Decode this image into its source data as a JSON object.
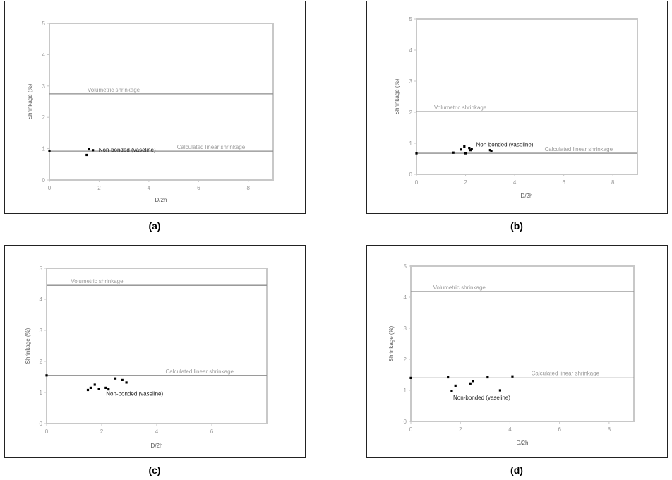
{
  "captions": [
    "(a)",
    "(b)",
    "(c)",
    "(d)"
  ],
  "colors": {
    "frame": "#222222",
    "plot_border": "#c8c8c8",
    "ref_line": "#8c8c8c",
    "points": "#000000",
    "tick_text": "#9a9a9a"
  },
  "chart_data": [
    {
      "type": "scatter",
      "xlabel": "D/2h",
      "ylabel": "Shrinkage (%)",
      "xlim": [
        0,
        9
      ],
      "ylim": [
        0,
        5
      ],
      "xticks": [
        "0",
        "2",
        "4",
        "6",
        "8"
      ],
      "yticks": [
        "0",
        "1",
        "2",
        "3",
        "4",
        "5"
      ],
      "grid": false,
      "ref_lines": [
        {
          "name": "Volumetric shrinkage",
          "y": 2.75
        },
        {
          "name": "Calculated linear shrinkage",
          "y": 0.92
        }
      ],
      "series": [
        {
          "name": "Non-bonded (vaseline)",
          "x": [
            0,
            1.5,
            1.6,
            1.75
          ],
          "y": [
            0.92,
            0.8,
            0.98,
            0.95
          ]
        }
      ]
    },
    {
      "type": "scatter",
      "xlabel": "D/2h",
      "ylabel": "Shrinkage (%)",
      "xlim": [
        0,
        9
      ],
      "ylim": [
        0,
        5
      ],
      "xticks": [
        "0",
        "2",
        "4",
        "6",
        "8"
      ],
      "yticks": [
        "0",
        "1",
        "2",
        "3",
        "4",
        "5"
      ],
      "grid": false,
      "ref_lines": [
        {
          "name": "Volumetric shrinkage",
          "y": 2.02
        },
        {
          "name": "Calculated linear shrinkage",
          "y": 0.68
        }
      ],
      "series": [
        {
          "name": "Non-bonded (vaseline)",
          "x": [
            0,
            1.5,
            1.8,
            1.95,
            2.0,
            2.15,
            2.2,
            2.25,
            3.0,
            3.05
          ],
          "y": [
            0.68,
            0.7,
            0.8,
            0.9,
            0.68,
            0.85,
            0.78,
            0.82,
            0.78,
            0.75
          ]
        }
      ]
    },
    {
      "type": "scatter",
      "xlabel": "D/2h",
      "ylabel": "Shrinkage (%)",
      "xlim": [
        0,
        8
      ],
      "ylim": [
        0,
        5
      ],
      "xticks": [
        "0",
        "2",
        "4",
        "6"
      ],
      "yticks": [
        "0",
        "1",
        "2",
        "3",
        "4",
        "5"
      ],
      "grid": false,
      "ref_lines": [
        {
          "name": "Volumetric shrinkage",
          "y": 4.45
        },
        {
          "name": "Calculated linear shrinkage",
          "y": 1.55
        }
      ],
      "series": [
        {
          "name": "Non-bonded (vaseline)",
          "x": [
            0,
            1.5,
            1.6,
            1.75,
            1.9,
            2.15,
            2.25,
            2.5,
            2.75,
            2.9
          ],
          "y": [
            1.55,
            1.08,
            1.15,
            1.25,
            1.12,
            1.15,
            1.1,
            1.45,
            1.4,
            1.32
          ]
        }
      ]
    },
    {
      "type": "scatter",
      "xlabel": "D/2h",
      "ylabel": "Shrinkage (%)",
      "xlim": [
        0,
        9
      ],
      "ylim": [
        0,
        5
      ],
      "xticks": [
        "0",
        "2",
        "4",
        "6",
        "8"
      ],
      "yticks": [
        "0",
        "1",
        "2",
        "3",
        "4",
        "5"
      ],
      "grid": false,
      "ref_lines": [
        {
          "name": "Volumetric shrinkage",
          "y": 4.18
        },
        {
          "name": "Calculated linear shrinkage",
          "y": 1.4
        }
      ],
      "series": [
        {
          "name": "Non-bonded (vaseline)",
          "x": [
            0,
            1.5,
            1.65,
            1.8,
            2.4,
            2.5,
            3.1,
            3.6,
            4.1
          ],
          "y": [
            1.4,
            1.42,
            0.98,
            1.15,
            1.22,
            1.3,
            1.42,
            1.0,
            1.45
          ]
        }
      ]
    }
  ]
}
